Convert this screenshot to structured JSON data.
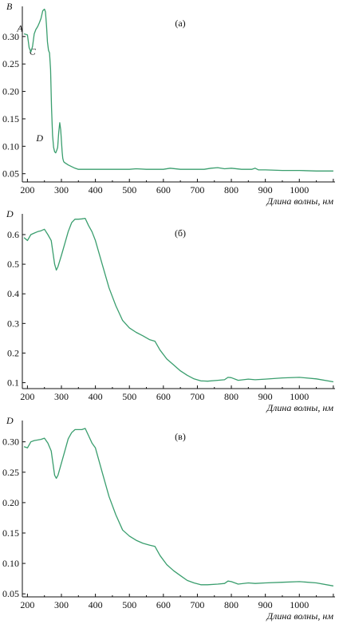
{
  "chart_data": [
    {
      "type": "line",
      "panel_label": "(а)",
      "ylabel": "B",
      "xlabel": "Длина волны, нм",
      "xlim": [
        185,
        1105
      ],
      "ylim": [
        0.035,
        0.355
      ],
      "xticks": [
        200,
        300,
        400,
        500,
        600,
        700,
        800,
        900,
        1000
      ],
      "yticks": [
        0.05,
        0.1,
        0.15,
        0.2,
        0.25,
        0.3
      ],
      "annotations": [
        {
          "text": "A",
          "x": 178,
          "y": 0.315
        },
        {
          "text": "C",
          "x": 215,
          "y": 0.273
        },
        {
          "text": "D",
          "x": 236,
          "y": 0.115
        }
      ],
      "series": [
        {
          "color": "#3a9e6e",
          "x": [
            190,
            200,
            205,
            210,
            215,
            220,
            225,
            230,
            235,
            240,
            245,
            250,
            253,
            256,
            259,
            262,
            265,
            268,
            271,
            274,
            277,
            280,
            283,
            286,
            289,
            292,
            295,
            298,
            300,
            302,
            304,
            306,
            308,
            310,
            315,
            320,
            330,
            340,
            350,
            370,
            400,
            450,
            500,
            520,
            550,
            600,
            620,
            650,
            700,
            720,
            740,
            760,
            780,
            800,
            830,
            860,
            870,
            880,
            900,
            950,
            1000,
            1050,
            1100
          ],
          "y": [
            0.305,
            0.303,
            0.28,
            0.272,
            0.282,
            0.305,
            0.313,
            0.318,
            0.325,
            0.333,
            0.347,
            0.35,
            0.345,
            0.32,
            0.29,
            0.275,
            0.27,
            0.24,
            0.17,
            0.12,
            0.098,
            0.09,
            0.088,
            0.092,
            0.098,
            0.125,
            0.143,
            0.13,
            0.11,
            0.09,
            0.078,
            0.073,
            0.071,
            0.07,
            0.068,
            0.066,
            0.063,
            0.06,
            0.058,
            0.058,
            0.058,
            0.058,
            0.058,
            0.059,
            0.058,
            0.058,
            0.06,
            0.058,
            0.058,
            0.058,
            0.06,
            0.061,
            0.059,
            0.06,
            0.058,
            0.058,
            0.06,
            0.057,
            0.057,
            0.056,
            0.056,
            0.055,
            0.055
          ]
        }
      ]
    },
    {
      "type": "line",
      "panel_label": "(б)",
      "ylabel": "D",
      "xlabel": "Длина волны, нм",
      "xlim": [
        185,
        1105
      ],
      "ylim": [
        0.08,
        0.67
      ],
      "xticks": [
        200,
        300,
        400,
        500,
        600,
        700,
        800,
        900,
        1000
      ],
      "yticks": [
        0.1,
        0.2,
        0.3,
        0.4,
        0.5,
        0.6
      ],
      "series": [
        {
          "color": "#3a9e6e",
          "x": [
            190,
            200,
            210,
            220,
            230,
            240,
            250,
            260,
            270,
            280,
            285,
            290,
            300,
            310,
            320,
            330,
            340,
            350,
            360,
            370,
            380,
            390,
            400,
            420,
            440,
            460,
            480,
            500,
            520,
            540,
            560,
            575,
            590,
            610,
            630,
            650,
            670,
            690,
            710,
            730,
            760,
            780,
            790,
            800,
            820,
            850,
            870,
            900,
            950,
            1000,
            1050,
            1100
          ],
          "y": [
            0.59,
            0.58,
            0.6,
            0.605,
            0.61,
            0.613,
            0.618,
            0.6,
            0.58,
            0.5,
            0.48,
            0.492,
            0.53,
            0.57,
            0.61,
            0.64,
            0.652,
            0.652,
            0.653,
            0.655,
            0.63,
            0.61,
            0.58,
            0.5,
            0.42,
            0.36,
            0.31,
            0.285,
            0.27,
            0.258,
            0.245,
            0.24,
            0.21,
            0.18,
            0.16,
            0.14,
            0.125,
            0.113,
            0.106,
            0.105,
            0.108,
            0.11,
            0.118,
            0.117,
            0.108,
            0.112,
            0.11,
            0.112,
            0.116,
            0.118,
            0.113,
            0.103
          ]
        }
      ]
    },
    {
      "type": "line",
      "panel_label": "(в)",
      "ylabel": "D",
      "xlabel": "Длина волны, нм",
      "xlim": [
        185,
        1105
      ],
      "ylim": [
        0.045,
        0.335
      ],
      "xticks": [
        200,
        300,
        400,
        500,
        600,
        700,
        800,
        900,
        1000
      ],
      "yticks": [
        0.05,
        0.1,
        0.15,
        0.2,
        0.25,
        0.3
      ],
      "series": [
        {
          "color": "#3a9e6e",
          "x": [
            190,
            200,
            210,
            220,
            230,
            240,
            250,
            260,
            270,
            280,
            285,
            290,
            300,
            310,
            320,
            330,
            340,
            350,
            360,
            370,
            380,
            390,
            400,
            420,
            440,
            460,
            480,
            500,
            520,
            540,
            560,
            575,
            590,
            610,
            630,
            650,
            670,
            690,
            710,
            730,
            760,
            780,
            790,
            800,
            820,
            850,
            870,
            900,
            950,
            1000,
            1050,
            1100
          ],
          "y": [
            0.292,
            0.29,
            0.3,
            0.302,
            0.303,
            0.304,
            0.306,
            0.298,
            0.285,
            0.245,
            0.24,
            0.245,
            0.265,
            0.285,
            0.305,
            0.315,
            0.32,
            0.32,
            0.32,
            0.322,
            0.31,
            0.298,
            0.29,
            0.25,
            0.21,
            0.18,
            0.155,
            0.145,
            0.138,
            0.133,
            0.13,
            0.128,
            0.113,
            0.098,
            0.088,
            0.08,
            0.072,
            0.068,
            0.065,
            0.065,
            0.066,
            0.067,
            0.071,
            0.07,
            0.066,
            0.068,
            0.067,
            0.068,
            0.069,
            0.07,
            0.068,
            0.063
          ]
        }
      ]
    }
  ]
}
